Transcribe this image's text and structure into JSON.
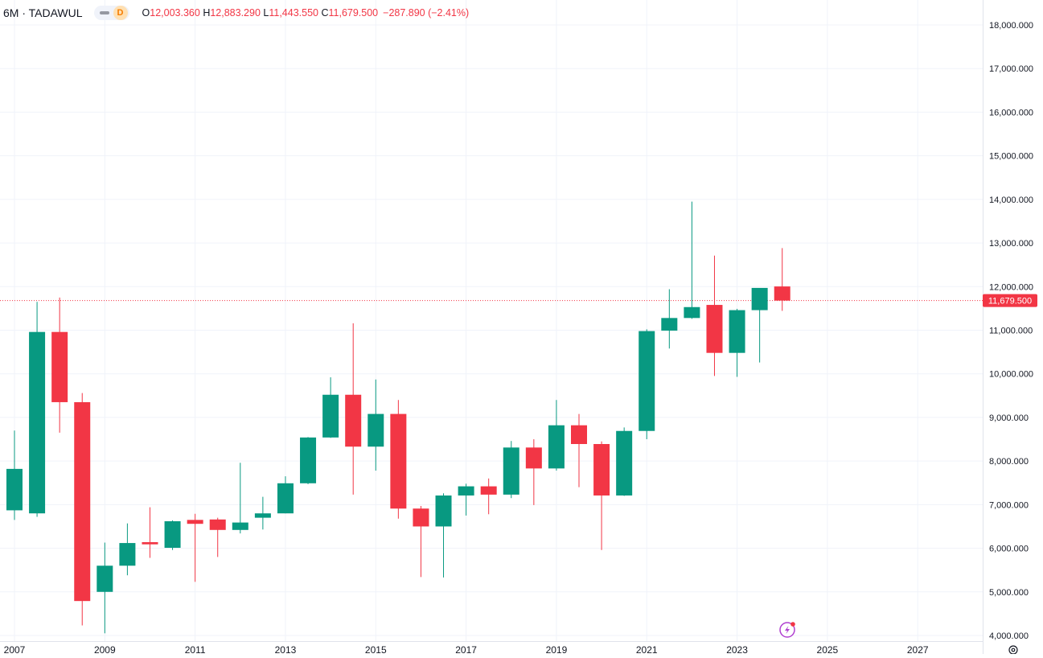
{
  "header": {
    "symbol": "6M · TADAWUL",
    "badge": "D",
    "ohlc": {
      "open_label": "O",
      "open": "12,003.360",
      "high_label": "H",
      "high": "12,883.290",
      "low_label": "L",
      "low": "11,443.550",
      "close_label": "C",
      "close": "11,679.500",
      "change": "−287.890 (−2.41%)"
    }
  },
  "colors": {
    "up": "#089981",
    "down": "#f23645",
    "grid": "#f0f3fa",
    "text": "#131722",
    "price_line": "#f23645"
  },
  "last_price_label": "11,679.500",
  "chart_data": {
    "type": "candlestick",
    "interval": "6M",
    "title": "6M · TADAWUL",
    "ylim": [
      3850,
      18250
    ],
    "yticks": [
      4000,
      5000,
      6000,
      7000,
      8000,
      9000,
      10000,
      11000,
      12000,
      13000,
      14000,
      15000,
      16000,
      17000,
      18000
    ],
    "ytick_labels": [
      "4,000.000",
      "5,000.000",
      "6,000.000",
      "7,000.000",
      "8,000.000",
      "9,000.000",
      "10,000.000",
      "11,000.000",
      "12,000.000",
      "13,000.000",
      "14,000.000",
      "15,000.000",
      "16,000.000",
      "17,000.000",
      "18,000.000"
    ],
    "xticks": [
      "2007",
      "2009",
      "2011",
      "2013",
      "2015",
      "2017",
      "2019",
      "2021",
      "2023",
      "2025",
      "2027"
    ],
    "last_price": 11679.5,
    "candles": [
      {
        "t": "2007 H1",
        "o": 6870,
        "h": 8700,
        "l": 6650,
        "c": 7820
      },
      {
        "t": "2007 H2",
        "o": 6800,
        "h": 11650,
        "l": 6720,
        "c": 10960
      },
      {
        "t": "2008 H1",
        "o": 10960,
        "h": 11750,
        "l": 8650,
        "c": 9350
      },
      {
        "t": "2008 H2",
        "o": 9350,
        "h": 9560,
        "l": 4230,
        "c": 4790
      },
      {
        "t": "2009 H1",
        "o": 5000,
        "h": 6130,
        "l": 4050,
        "c": 5600
      },
      {
        "t": "2009 H2",
        "o": 5600,
        "h": 6570,
        "l": 5380,
        "c": 6120
      },
      {
        "t": "2010 H1",
        "o": 6140,
        "h": 6940,
        "l": 5780,
        "c": 6090
      },
      {
        "t": "2010 H2",
        "o": 6010,
        "h": 6640,
        "l": 5960,
        "c": 6620
      },
      {
        "t": "2011 H1",
        "o": 6650,
        "h": 6790,
        "l": 5230,
        "c": 6560
      },
      {
        "t": "2011 H2",
        "o": 6660,
        "h": 6700,
        "l": 5800,
        "c": 6420
      },
      {
        "t": "2012 H1",
        "o": 6420,
        "h": 7960,
        "l": 6340,
        "c": 6590
      },
      {
        "t": "2012 H2",
        "o": 6700,
        "h": 7180,
        "l": 6430,
        "c": 6800
      },
      {
        "t": "2013 H1",
        "o": 6800,
        "h": 7650,
        "l": 6800,
        "c": 7490
      },
      {
        "t": "2013 H2",
        "o": 7490,
        "h": 8550,
        "l": 7470,
        "c": 8540
      },
      {
        "t": "2014 H1",
        "o": 8540,
        "h": 9920,
        "l": 8530,
        "c": 9520
      },
      {
        "t": "2014 H2",
        "o": 9520,
        "h": 11160,
        "l": 7230,
        "c": 8330
      },
      {
        "t": "2015 H1",
        "o": 8330,
        "h": 9870,
        "l": 7780,
        "c": 9080
      },
      {
        "t": "2015 H2",
        "o": 9080,
        "h": 9400,
        "l": 6680,
        "c": 6910
      },
      {
        "t": "2016 H1",
        "o": 6910,
        "h": 6970,
        "l": 5340,
        "c": 6500
      },
      {
        "t": "2016 H2",
        "o": 6500,
        "h": 7260,
        "l": 5330,
        "c": 7210
      },
      {
        "t": "2017 H1",
        "o": 7210,
        "h": 7480,
        "l": 6750,
        "c": 7420
      },
      {
        "t": "2017 H2",
        "o": 7420,
        "h": 7600,
        "l": 6780,
        "c": 7230
      },
      {
        "t": "2018 H1",
        "o": 7230,
        "h": 8460,
        "l": 7150,
        "c": 8310
      },
      {
        "t": "2018 H2",
        "o": 8310,
        "h": 8500,
        "l": 6990,
        "c": 7830
      },
      {
        "t": "2019 H1",
        "o": 7830,
        "h": 9400,
        "l": 7780,
        "c": 8820
      },
      {
        "t": "2019 H2",
        "o": 8820,
        "h": 9080,
        "l": 7400,
        "c": 8390
      },
      {
        "t": "2020 H1",
        "o": 8390,
        "h": 8450,
        "l": 5960,
        "c": 7210
      },
      {
        "t": "2020 H2",
        "o": 7210,
        "h": 8770,
        "l": 7200,
        "c": 8690
      },
      {
        "t": "2021 H1",
        "o": 8690,
        "h": 11020,
        "l": 8500,
        "c": 10980
      },
      {
        "t": "2021 H2",
        "o": 10990,
        "h": 11940,
        "l": 10580,
        "c": 11280
      },
      {
        "t": "2022 H1",
        "o": 11280,
        "h": 13950,
        "l": 11260,
        "c": 11530
      },
      {
        "t": "2022 H2",
        "o": 11580,
        "h": 12710,
        "l": 9950,
        "c": 10480
      },
      {
        "t": "2023 H1",
        "o": 10480,
        "h": 11490,
        "l": 9930,
        "c": 11460
      },
      {
        "t": "2023 H2",
        "o": 11460,
        "h": 11960,
        "l": 10260,
        "c": 11970
      },
      {
        "t": "2024 H1",
        "o": 12003.36,
        "h": 12883.29,
        "l": 11443.55,
        "c": 11679.5
      }
    ]
  }
}
